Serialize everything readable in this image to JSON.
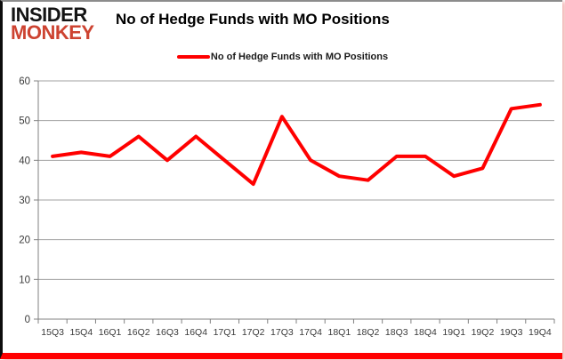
{
  "brand": {
    "line1": "INSIDER",
    "line2": "MONKEY",
    "color1": "#141414",
    "color2": "#cd4331"
  },
  "header": {
    "title": "No of Hedge Funds with MO Positions"
  },
  "legend": {
    "label": "No of Hedge Funds with MO Positions",
    "color": "#ff0000"
  },
  "chart_data": {
    "type": "line",
    "title": "No of Hedge Funds with MO Positions",
    "categories": [
      "15Q3",
      "15Q4",
      "16Q1",
      "16Q2",
      "16Q3",
      "16Q4",
      "17Q1",
      "17Q2",
      "17Q3",
      "17Q4",
      "18Q1",
      "18Q2",
      "18Q3",
      "18Q4",
      "19Q1",
      "19Q2",
      "19Q3",
      "19Q4"
    ],
    "series": [
      {
        "name": "No of Hedge Funds with MO Positions",
        "color": "#ff0000",
        "values": [
          41,
          42,
          41,
          46,
          40,
          46,
          40,
          34,
          51,
          40,
          36,
          35,
          41,
          41,
          36,
          38,
          53,
          54
        ]
      }
    ],
    "xlabel": "",
    "ylabel": "",
    "ylim": [
      0,
      60
    ],
    "ytick_interval": 10,
    "grid": true,
    "legend_position": "top"
  },
  "colors": {
    "grid": "#a0a0a0",
    "axis": "#808080",
    "bottom_bar": "#ff0000"
  }
}
